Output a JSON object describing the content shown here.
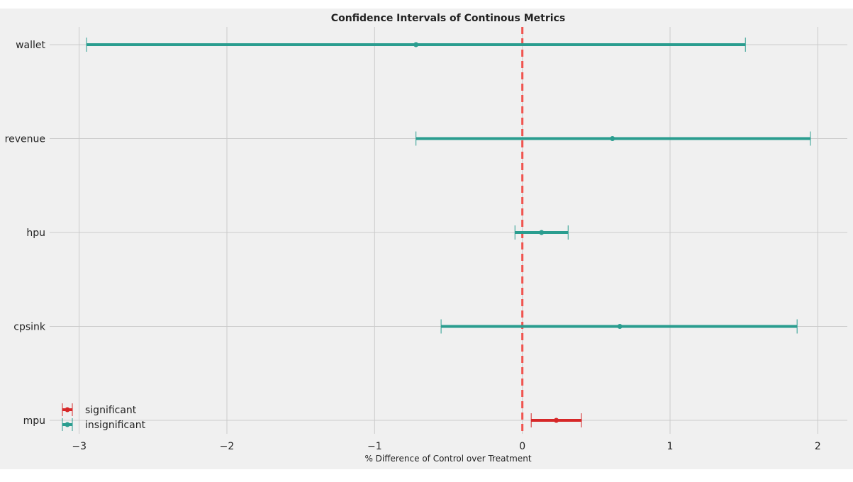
{
  "chart_data": {
    "type": "errorbar",
    "title": "Confidence Intervals of Continous Metrics",
    "xlabel": "% Difference of Control over Treatment",
    "ylabel": "",
    "xlim": [
      -3.2,
      2.2
    ],
    "xticks": [
      -3,
      -2,
      -1,
      0,
      1,
      2
    ],
    "xtick_labels": [
      "−3",
      "−2",
      "−1",
      "0",
      "1",
      "2"
    ],
    "grid": true,
    "reference_line": {
      "x": 0,
      "style": "dashed",
      "color": "#f0544f"
    },
    "categories": [
      "wallet",
      "revenue",
      "hpu",
      "cpsink",
      "mpu"
    ],
    "series": [
      {
        "name": "significant",
        "color": "#d62728",
        "points": [
          {
            "category": "mpu",
            "estimate": 0.23,
            "lower": 0.06,
            "upper": 0.4
          }
        ]
      },
      {
        "name": "insignificant",
        "color": "#2a9d8f",
        "points": [
          {
            "category": "wallet",
            "estimate": -0.72,
            "lower": -2.95,
            "upper": 1.51
          },
          {
            "category": "revenue",
            "estimate": 0.61,
            "lower": -0.72,
            "upper": 1.95
          },
          {
            "category": "hpu",
            "estimate": 0.13,
            "lower": -0.05,
            "upper": 0.31
          },
          {
            "category": "cpsink",
            "estimate": 0.66,
            "lower": -0.55,
            "upper": 1.86
          }
        ]
      }
    ],
    "legend": {
      "position": "lower-left",
      "entries": [
        "significant",
        "insignificant"
      ]
    },
    "colors": {
      "background": "#f0f0f0",
      "grid": "#cbcbcb",
      "text": "#222222"
    }
  }
}
